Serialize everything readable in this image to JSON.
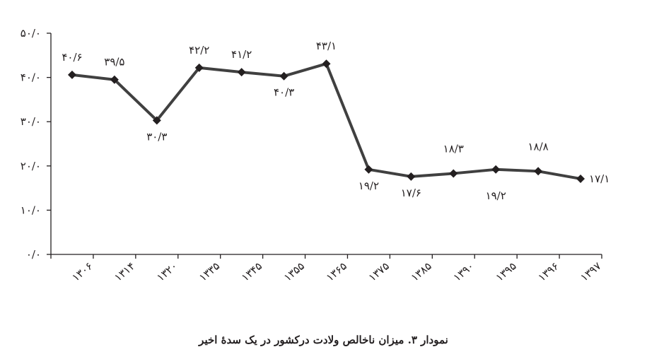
{
  "caption": "نمودار ۳. میزان ناخالص ولادت درکشور در یک سدهٔ اخیر",
  "chart_data": {
    "type": "line",
    "title": "",
    "xlabel": "",
    "ylabel": "",
    "categories": [
      "۱۳۰۶",
      "۱۳۱۴",
      "۱۳۲۰",
      "۱۳۳۵",
      "۱۳۴۵",
      "۱۳۵۵",
      "۱۳۶۵",
      "۱۳۷۵",
      "۱۳۸۵",
      "۱۳۹۰",
      "۱۳۹۵",
      "۱۳۹۶",
      "۱۳۹۷"
    ],
    "values": [
      40.6,
      39.5,
      30.3,
      42.2,
      41.2,
      40.3,
      43.1,
      19.2,
      17.6,
      18.3,
      19.2,
      18.8,
      17.1
    ],
    "data_labels": [
      "۴۰/۶",
      "۳۹/۵",
      "۳۰/۳",
      "۴۲/۲",
      "۴۱/۲",
      "۴۰/۳",
      "۴۳/۱",
      "۱۹/۲",
      "۱۷/۶",
      "۱۸/۳",
      "۱۹/۲",
      "۱۸/۸",
      "۱۷/۱"
    ],
    "yticks": [
      0,
      10,
      20,
      30,
      40,
      50
    ],
    "ytick_labels": [
      "۰/۰",
      "۱۰/۰",
      "۲۰/۰",
      "۳۰/۰",
      "۴۰/۰",
      "۵۰/۰"
    ],
    "ylim": [
      0,
      50
    ],
    "grid": false,
    "line_color": "#404040",
    "marker_color": "#231f20"
  }
}
